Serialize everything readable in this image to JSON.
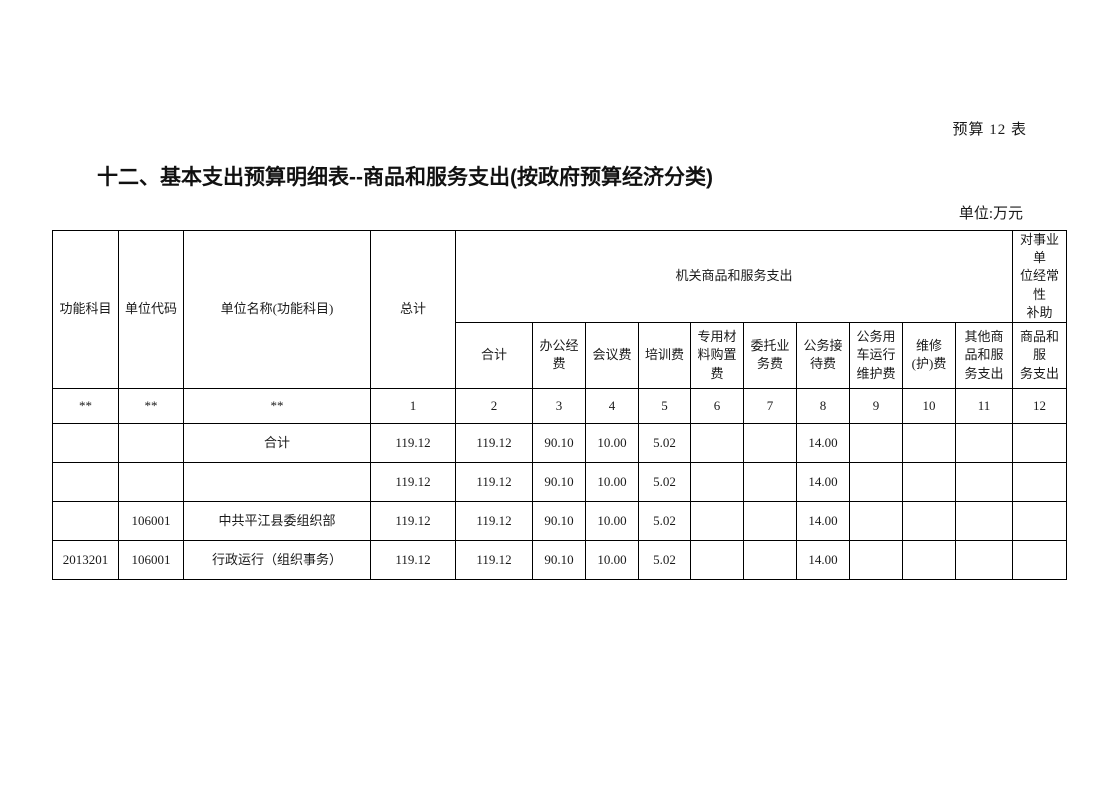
{
  "page": {
    "table_number_label": "预算 12 表",
    "title": "十二、基本支出预算明细表--商品和服务支出(按政府预算经济分类)",
    "unit_label": "单位:万元"
  },
  "table": {
    "header": {
      "col_function_subject": "功能科目",
      "col_unit_code": "单位代码",
      "col_unit_name": "单位名称(功能科目)",
      "col_grand_total": "总计",
      "group_agency": "机关商品和服务支出",
      "group_subsidy": "对事业单\n位经常性\n补助",
      "sub_cols": [
        "合计",
        "办公经\n费",
        "会议费",
        "培训费",
        "专用材\n料购置\n费",
        "委托业\n务费",
        "公务接\n待费",
        "公务用\n车运行\n维护费",
        "维修\n(护)费",
        "其他商\n品和服\n务支出"
      ],
      "subsidy_sub": "商品和服\n务支出"
    },
    "code_row": [
      "**",
      "**",
      "**",
      "1",
      "2",
      "3",
      "4",
      "5",
      "6",
      "7",
      "8",
      "9",
      "10",
      "11",
      "12"
    ],
    "rows": [
      [
        "",
        "",
        "合计",
        "119.12",
        "119.12",
        "90.10",
        "10.00",
        "5.02",
        "",
        "",
        "14.00",
        "",
        "",
        "",
        ""
      ],
      [
        "",
        "",
        "",
        "119.12",
        "119.12",
        "90.10",
        "10.00",
        "5.02",
        "",
        "",
        "14.00",
        "",
        "",
        "",
        ""
      ],
      [
        "",
        "106001",
        "中共平江县委组织部",
        "119.12",
        "119.12",
        "90.10",
        "10.00",
        "5.02",
        "",
        "",
        "14.00",
        "",
        "",
        "",
        ""
      ],
      [
        "2013201",
        "106001",
        "行政运行（组织事务）",
        "119.12",
        "119.12",
        "90.10",
        "10.00",
        "5.02",
        "",
        "",
        "14.00",
        "",
        "",
        "",
        ""
      ]
    ]
  }
}
